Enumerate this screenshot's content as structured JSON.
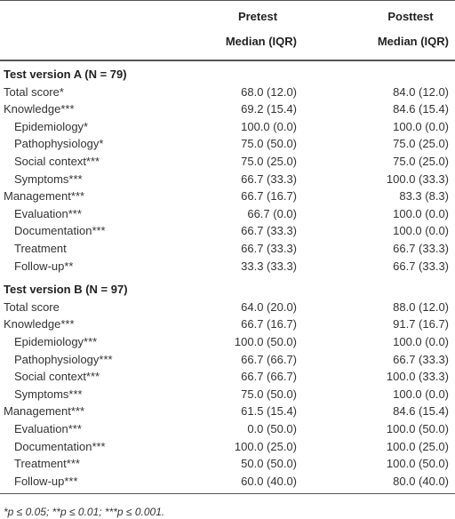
{
  "header": {
    "columns": [
      {
        "title": "Pretest",
        "subtitle": "Median (IQR)"
      },
      {
        "title": "Posttest",
        "subtitle": "Median (IQR)"
      }
    ]
  },
  "sections": [
    {
      "title": "Test version A (N = 79)",
      "rows": [
        {
          "label": "Total score*",
          "indent": false,
          "cells": [
            "68.0 (12.0)",
            "84.0 (12.0)"
          ]
        },
        {
          "label": "Knowledge***",
          "indent": false,
          "cells": [
            "69.2 (15.4)",
            "84.6 (15.4)"
          ]
        },
        {
          "label": "Epidemiology*",
          "indent": true,
          "cells": [
            "100.0 (0.0)",
            "100.0 (0.0)"
          ]
        },
        {
          "label": "Pathophysiology*",
          "indent": true,
          "cells": [
            "75.0 (50.0)",
            "75.0 (25.0)"
          ]
        },
        {
          "label": "Social context***",
          "indent": true,
          "cells": [
            "75.0 (25.0)",
            "75.0 (25.0)"
          ]
        },
        {
          "label": "Symptoms***",
          "indent": true,
          "cells": [
            "66.7 (33.3)",
            "100.0 (33.3)"
          ]
        },
        {
          "label": "Management***",
          "indent": false,
          "cells": [
            "66.7 (16.7)",
            "83.3 (8.3)"
          ]
        },
        {
          "label": "Evaluation***",
          "indent": true,
          "cells": [
            "66.7 (0.0)",
            "100.0 (0.0)"
          ]
        },
        {
          "label": "Documentation***",
          "indent": true,
          "cells": [
            "66.7 (33.3)",
            "100.0 (0.0)"
          ]
        },
        {
          "label": "Treatment",
          "indent": true,
          "cells": [
            "66.7 (33.3)",
            "66.7 (33.3)"
          ]
        },
        {
          "label": "Follow-up**",
          "indent": true,
          "cells": [
            "33.3 (33.3)",
            "66.7 (33.3)"
          ]
        }
      ]
    },
    {
      "title": "Test version B (N = 97)",
      "rows": [
        {
          "label": "Total score",
          "indent": false,
          "cells": [
            "64.0 (20.0)",
            "88.0 (12.0)"
          ]
        },
        {
          "label": "Knowledge***",
          "indent": false,
          "cells": [
            "66.7 (16.7)",
            "91.7 (16.7)"
          ]
        },
        {
          "label": "Epidemiology***",
          "indent": true,
          "cells": [
            "100.0 (50.0)",
            "100.0 (0.0)"
          ]
        },
        {
          "label": "Pathophysiology***",
          "indent": true,
          "cells": [
            "66.7 (66.7)",
            "66.7 (33.3)"
          ]
        },
        {
          "label": "Social context***",
          "indent": true,
          "cells": [
            "66.7 (66.7)",
            "100.0 (33.3)"
          ]
        },
        {
          "label": "Symptoms***",
          "indent": true,
          "cells": [
            "75.0 (50.0)",
            "100.0 (0.0)"
          ]
        },
        {
          "label": "Management***",
          "indent": false,
          "cells": [
            "61.5 (15.4)",
            "84.6 (15.4)"
          ]
        },
        {
          "label": "Evaluation***",
          "indent": true,
          "cells": [
            "0.0 (50.0)",
            "100.0 (50.0)"
          ]
        },
        {
          "label": "Documentation***",
          "indent": true,
          "cells": [
            "100.0 (25.0)",
            "100.0 (25.0)"
          ]
        },
        {
          "label": "Treatment***",
          "indent": true,
          "cells": [
            "50.0 (50.0)",
            "100.0 (50.0)"
          ]
        },
        {
          "label": "Follow-up***",
          "indent": true,
          "cells": [
            "60.0 (40.0)",
            "80.0 (40.0)"
          ]
        }
      ]
    }
  ],
  "footnote": "*p ≤ 0.05; **p ≤ 0.01; ***p ≤ 0.001."
}
